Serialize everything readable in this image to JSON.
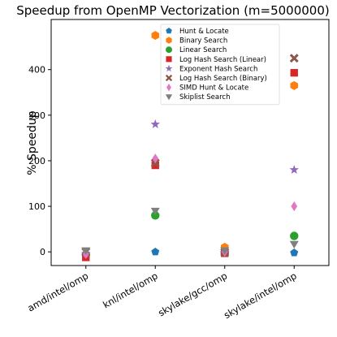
{
  "chart_data": {
    "type": "scatter",
    "title": "Speedup from OpenMP Vectorization (m=5000000)",
    "xlabel": "",
    "ylabel": "% Speedup",
    "categories": [
      "amd/intel/omp",
      "knl/intel/omp",
      "skylake/gcc/omp",
      "skylake/intel/omp"
    ],
    "yticks": [
      0,
      100,
      200,
      300,
      400
    ],
    "ylim": [
      -30,
      510
    ],
    "grid": false,
    "legend_position": "top-right",
    "series": [
      {
        "name": "Hunt & Locate",
        "marker": "pentagon",
        "color": "#1f77b4",
        "values": [
          -5,
          0,
          -3,
          -2
        ]
      },
      {
        "name": "Binary Search",
        "marker": "hexagon",
        "color": "#ff7f0e",
        "values": [
          -8,
          475,
          10,
          365
        ]
      },
      {
        "name": "Linear Search",
        "marker": "circle",
        "color": "#2ca02c",
        "values": [
          -6,
          80,
          -2,
          35
        ]
      },
      {
        "name": "Log Hash Search (Linear)",
        "marker": "square",
        "color": "#d62728",
        "values": [
          -12,
          190,
          -3,
          393
        ]
      },
      {
        "name": "Exponent Hash Search",
        "marker": "star",
        "color": "#9467bd",
        "values": [
          -4,
          280,
          -2,
          180
        ]
      },
      {
        "name": "Log Hash Search (Binary)",
        "marker": "x",
        "color": "#8c564b",
        "values": [
          0,
          195,
          -1,
          425
        ]
      },
      {
        "name": "SIMD Hunt & Locate",
        "marker": "diamond",
        "color": "#e377c2",
        "values": [
          -5,
          205,
          0,
          100
        ]
      },
      {
        "name": "Skiplist Search",
        "marker": "triangle-down",
        "color": "#7f7f7f",
        "values": [
          3,
          90,
          3,
          17
        ]
      }
    ]
  }
}
